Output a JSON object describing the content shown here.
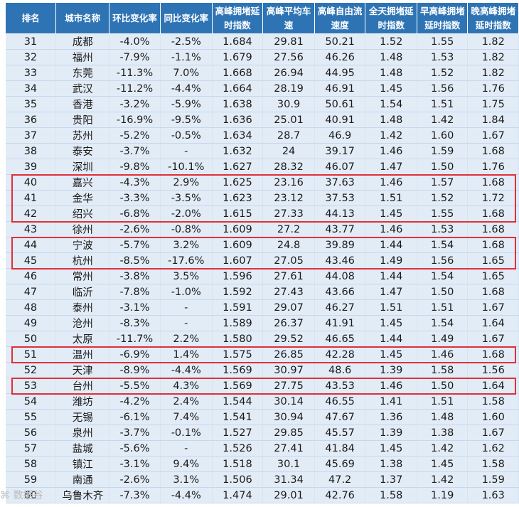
{
  "header": [
    "排名",
    "城市名称",
    "环比变化率",
    "同比变化率",
    "高峰拥堵延时指数",
    "高峰平均车速",
    "高峰自由流速度",
    "全天拥堵延时指数",
    "早高峰拥堵延时指数",
    "晚高峰拥堵延时指数"
  ],
  "rows": [
    [
      "31",
      "成都",
      "-4.0%",
      "-2.5%",
      "1.684",
      "29.81",
      "50.21",
      "1.52",
      "1.55",
      "1.82"
    ],
    [
      "32",
      "福州",
      "-7.9%",
      "-1.1%",
      "1.679",
      "27.56",
      "46.26",
      "1.48",
      "1.53",
      "1.82"
    ],
    [
      "33",
      "东莞",
      "-11.3%",
      "7.0%",
      "1.668",
      "26.94",
      "44.95",
      "1.48",
      "1.52",
      "1.82"
    ],
    [
      "34",
      "武汉",
      "-11.2%",
      "-4.4%",
      "1.664",
      "28.19",
      "46.91",
      "1.45",
      "1.56",
      "1.76"
    ],
    [
      "35",
      "香港",
      "-3.2%",
      "-5.9%",
      "1.638",
      "30.9",
      "50.61",
      "1.54",
      "1.51",
      "1.75"
    ],
    [
      "36",
      "贵阳",
      "-16.9%",
      "-9.5%",
      "1.636",
      "25.01",
      "40.91",
      "1.48",
      "1.42",
      "1.84"
    ],
    [
      "37",
      "苏州",
      "-5.2%",
      "-0.5%",
      "1.634",
      "28.7",
      "46.9",
      "1.42",
      "1.60",
      "1.67"
    ],
    [
      "38",
      "泰安",
      "-3.7%",
      "-",
      "1.632",
      "24",
      "39.17",
      "1.46",
      "1.59",
      "1.68"
    ],
    [
      "39",
      "深圳",
      "-9.8%",
      "-10.1%",
      "1.627",
      "28.32",
      "46.07",
      "1.47",
      "1.50",
      "1.76"
    ],
    [
      "40",
      "嘉兴",
      "-4.3%",
      "2.9%",
      "1.625",
      "23.16",
      "37.63",
      "1.46",
      "1.57",
      "1.68"
    ],
    [
      "41",
      "金华",
      "-3.3%",
      "-3.5%",
      "1.623",
      "23.12",
      "37.53",
      "1.51",
      "1.52",
      "1.72"
    ],
    [
      "42",
      "绍兴",
      "-6.8%",
      "-2.0%",
      "1.615",
      "27.33",
      "44.13",
      "1.45",
      "1.55",
      "1.68"
    ],
    [
      "43",
      "徐州",
      "-2.6%",
      "-0.8%",
      "1.609",
      "27.2",
      "43.77",
      "1.46",
      "1.53",
      "1.68"
    ],
    [
      "44",
      "宁波",
      "-5.7%",
      "3.2%",
      "1.609",
      "24.8",
      "39.89",
      "1.44",
      "1.54",
      "1.68"
    ],
    [
      "45",
      "杭州",
      "-8.5%",
      "-17.6%",
      "1.607",
      "27.05",
      "43.46",
      "1.49",
      "1.56",
      "1.65"
    ],
    [
      "46",
      "常州",
      "-3.8%",
      "3.5%",
      "1.596",
      "27.61",
      "44.08",
      "1.44",
      "1.54",
      "1.65"
    ],
    [
      "47",
      "临沂",
      "-7.8%",
      "-1.0%",
      "1.592",
      "27.43",
      "43.66",
      "1.47",
      "1.50",
      "1.68"
    ],
    [
      "48",
      "泰州",
      "-3.1%",
      "-",
      "1.591",
      "29.07",
      "46.27",
      "1.51",
      "1.51",
      "1.67"
    ],
    [
      "49",
      "沧州",
      "-8.3%",
      "-",
      "1.589",
      "26.37",
      "41.91",
      "1.45",
      "1.54",
      "1.64"
    ],
    [
      "50",
      "太原",
      "-11.7%",
      "2.2%",
      "1.580",
      "29.52",
      "46.65",
      "1.44",
      "1.49",
      "1.67"
    ],
    [
      "51",
      "温州",
      "-6.9%",
      "1.4%",
      "1.575",
      "26.85",
      "42.28",
      "1.45",
      "1.46",
      "1.68"
    ],
    [
      "52",
      "天津",
      "-8.9%",
      "-4.4%",
      "1.569",
      "30.97",
      "48.6",
      "1.39",
      "1.58",
      "1.56"
    ],
    [
      "53",
      "台州",
      "-5.5%",
      "4.3%",
      "1.569",
      "27.75",
      "43.53",
      "1.46",
      "1.50",
      "1.64"
    ],
    [
      "54",
      "潍坊",
      "-4.2%",
      "2.4%",
      "1.544",
      "30.14",
      "46.55",
      "1.41",
      "1.51",
      "1.58"
    ],
    [
      "55",
      "无锡",
      "-6.1%",
      "7.4%",
      "1.541",
      "30.94",
      "47.67",
      "1.36",
      "1.48",
      "1.60"
    ],
    [
      "56",
      "泉州",
      "-3.7%",
      "-0.1%",
      "1.527",
      "29.85",
      "45.57",
      "1.39",
      "1.38",
      "1.67"
    ],
    [
      "57",
      "盐城",
      "-5.6%",
      "-",
      "1.526",
      "27.41",
      "41.84",
      "1.45",
      "1.42",
      "1.62"
    ],
    [
      "58",
      "镇江",
      "-3.1%",
      "9.4%",
      "1.518",
      "30.1",
      "45.69",
      "1.38",
      "1.45",
      "1.58"
    ],
    [
      "59",
      "南通",
      "-2.6%",
      "3.1%",
      "1.506",
      "31.34",
      "47.2",
      "1.37",
      "1.42",
      "1.59"
    ],
    [
      "60",
      "乌鲁木齐",
      "-7.3%",
      "-4.4%",
      "1.474",
      "29.01",
      "42.76",
      "1.58",
      "1.19",
      "1.63"
    ]
  ],
  "highlight_groups": [
    [
      "40",
      "41",
      "42"
    ],
    [
      "44",
      "45"
    ],
    [
      "51"
    ],
    [
      "53"
    ]
  ],
  "colors": {
    "header_bg": "#2e74b5",
    "row_bg": "#e2ecf7",
    "highlight": "#e0303a"
  },
  "watermark": "数据谷"
}
